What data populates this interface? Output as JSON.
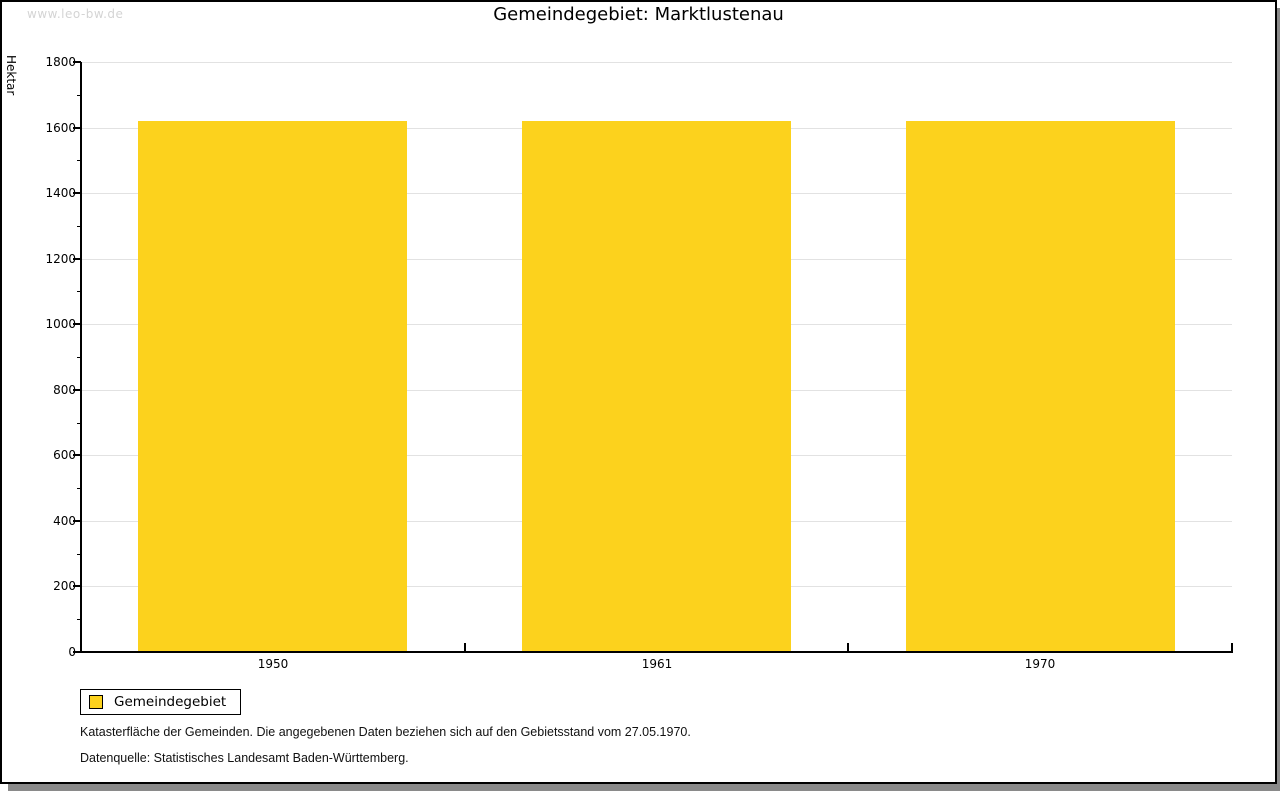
{
  "watermark": "www.leo-bw.de",
  "title": "Gemeindegebiet: Marktlustenau",
  "chart_data": {
    "type": "bar",
    "title": "Gemeindegebiet: Marktlustenau",
    "categories": [
      "1950",
      "1961",
      "1970"
    ],
    "series": [
      {
        "name": "Gemeindegebiet",
        "values": [
          1620,
          1620,
          1620
        ]
      }
    ],
    "xlabel": "",
    "ylabel": "Hektar",
    "ylim": [
      0,
      1800
    ],
    "ytick_major_step": 200,
    "ytick_minor_step": 100,
    "grid": true,
    "legend_position": "bottom-left",
    "bar_color": "#fcd21d",
    "gridline_color": "#e2e2e2",
    "axis_color": "#000000"
  },
  "legend": {
    "items": [
      {
        "label": "Gemeindegebiet",
        "color": "#fcd21d"
      }
    ]
  },
  "footer": {
    "line1": "Katasterfläche der Gemeinden. Die angegebenen Daten beziehen sich auf den Gebietsstand vom 27.05.1970.",
    "line2": "Datenquelle: Statistisches Landesamt Baden-Württemberg."
  }
}
